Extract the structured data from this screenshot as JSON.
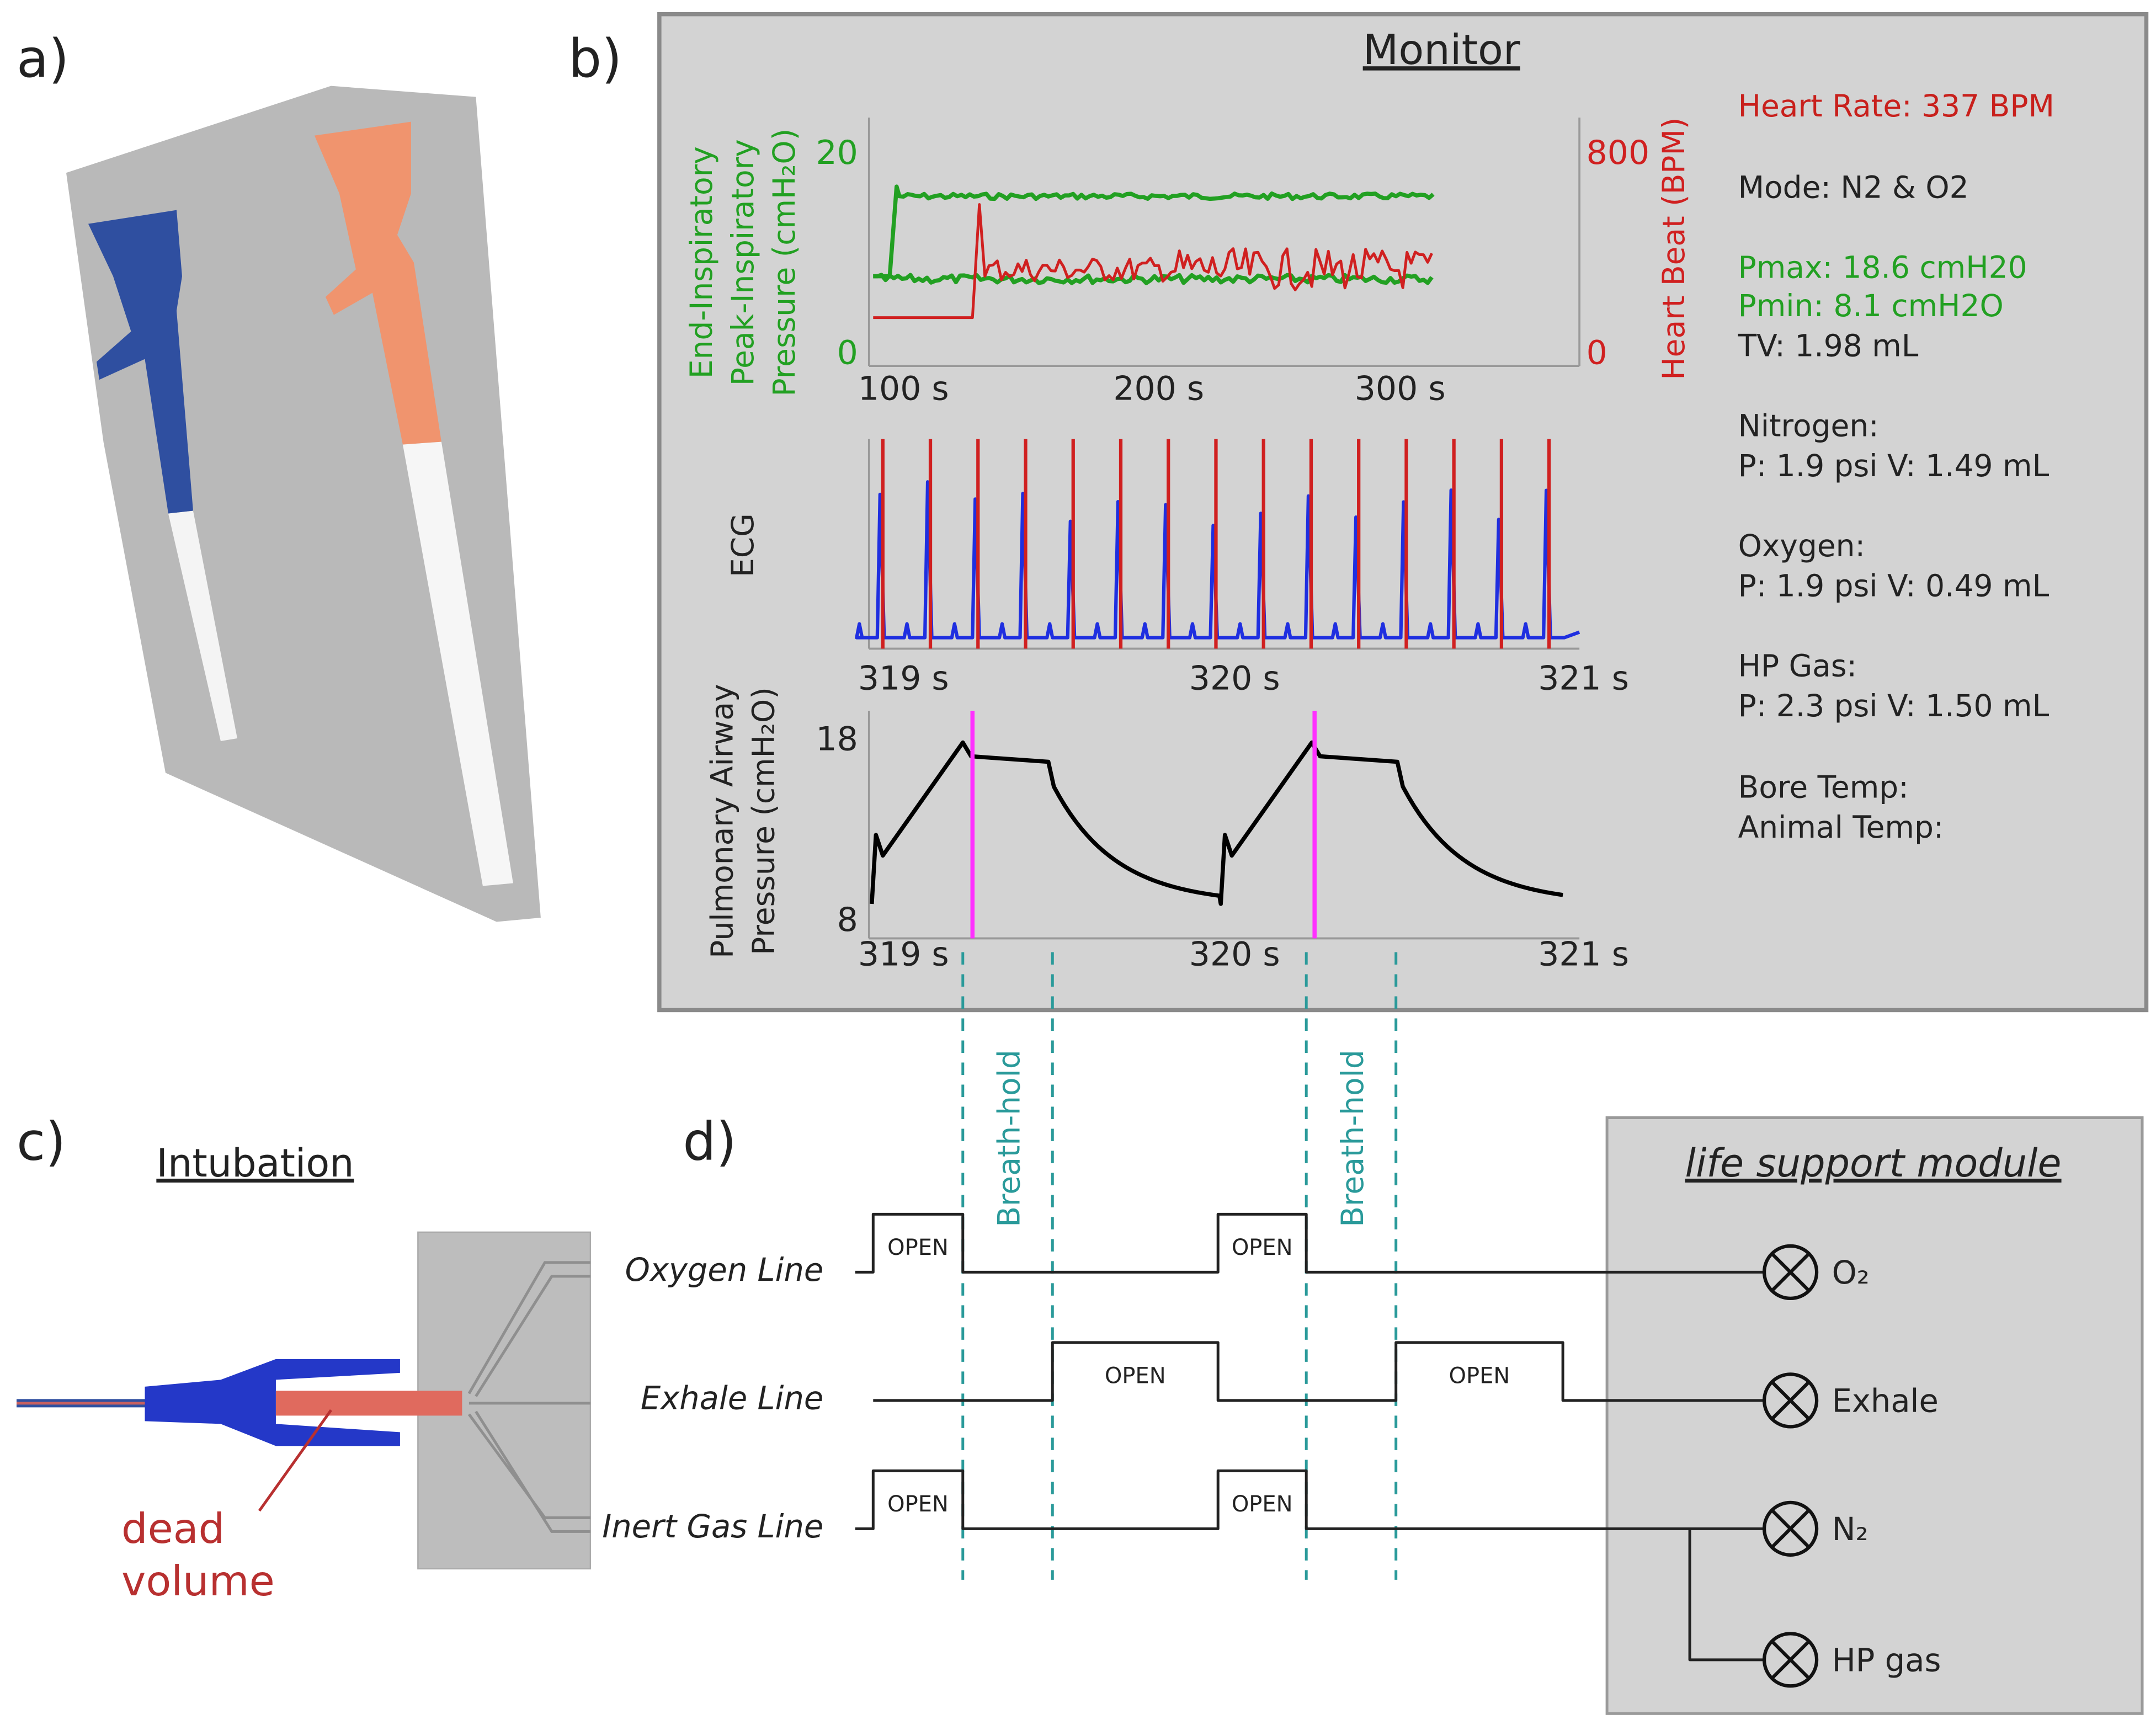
{
  "panels": {
    "a": "a)",
    "b": "b)",
    "c": "c)",
    "d": "d)"
  },
  "monitor": {
    "title": "Monitor",
    "plot1": {
      "ylabel_left": [
        "End-Inspiratory",
        "Peak-Inspiratory",
        "Pressure (cmH₂O)"
      ],
      "ylabel_right": "Heart Beat (BPM)",
      "yticks_left": [
        20,
        0
      ],
      "yticks_right": [
        800,
        0
      ],
      "xticks": [
        "100 s",
        "200 s",
        "300 s"
      ]
    },
    "plot2": {
      "ylabel": "ECG",
      "xticks": [
        "319 s",
        "320 s",
        "321 s"
      ]
    },
    "plot3": {
      "ylabel": [
        "Pulmonary Airway",
        "Pressure (cmH₂O)"
      ],
      "yticks": [
        18,
        8
      ],
      "xticks": [
        "319 s",
        "320 s",
        "321 s"
      ]
    },
    "readout": [
      "Heart Rate: 337 BPM",
      "Mode: N2 & O2",
      "Pmax: 18.6 cmH20",
      "Pmin: 8.1 cmH2O",
      "TV: 1.98 mL",
      "Nitrogen:",
      "P: 1.9 psi V: 1.49 mL",
      "Oxygen:",
      "P: 1.9 psi V: 0.49 mL",
      "HP Gas:",
      "P: 2.3 psi V: 1.50 mL",
      "Bore Temp:",
      "Animal Temp:"
    ]
  },
  "intubation": {
    "title": "Intubation",
    "label": [
      "dead",
      "volume"
    ]
  },
  "timing": {
    "lines": [
      "Oxygen Line",
      "Exhale Line",
      "Inert Gas Line"
    ],
    "open": "OPEN",
    "breath_hold": "Breath-hold"
  },
  "module": {
    "title": "life support module",
    "valves": [
      "O₂",
      "Exhale",
      "N₂",
      "HP gas"
    ]
  }
}
